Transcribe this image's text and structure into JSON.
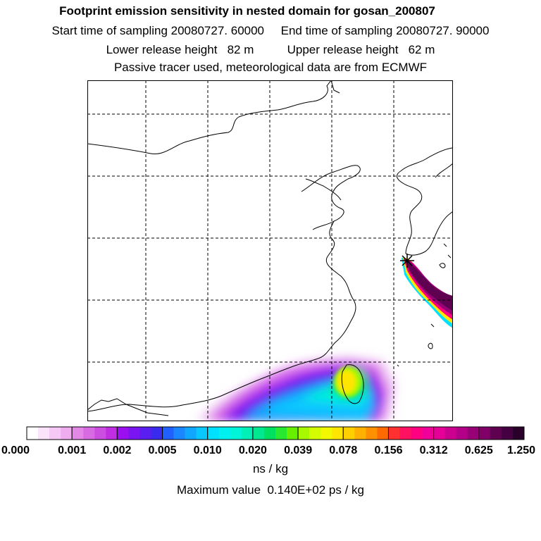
{
  "header": {
    "title": "Footprint emission sensitivity in nested domain for gosan_200807",
    "sampling": "Start time of sampling 20080727. 60000     End time of sampling 20080727. 90000",
    "release": "Lower release height   82 m          Upper release height   62 m",
    "tracer": "Passive tracer used, meteorological data are from ECMWF"
  },
  "colorbar": {
    "tick_labels": [
      "0.000",
      "0.001",
      "0.002",
      "0.005",
      "0.010",
      "0.020",
      "0.039",
      "0.078",
      "0.156",
      "0.312",
      "0.625",
      "1.250"
    ],
    "groups": [
      [
        "#ffffff",
        "#fbe3fb",
        "#f5c8f5",
        "#efadef"
      ],
      [
        "#e488e8",
        "#d96be2",
        "#cc4ee0",
        "#bf2ee0"
      ],
      [
        "#9a0ef0",
        "#7a14f0",
        "#5a1ef0",
        "#3a2af0"
      ],
      [
        "#2060ff",
        "#1a86ff",
        "#10a8ff",
        "#08c8ff"
      ],
      [
        "#00e0ff",
        "#00f0f0",
        "#00f5d8",
        "#00f0b8"
      ],
      [
        "#00e890",
        "#00e060",
        "#28e830",
        "#66f000"
      ],
      [
        "#a8f800",
        "#d4fc00",
        "#f2f800",
        "#ffe600"
      ],
      [
        "#ffd000",
        "#ffb000",
        "#ff9000",
        "#ff6a00"
      ],
      [
        "#ff3030",
        "#ff1060",
        "#ff0080",
        "#f00098"
      ],
      [
        "#e60098",
        "#cc0090",
        "#b40088",
        "#980078"
      ],
      [
        "#800068",
        "#600050",
        "#440040",
        "#28002a"
      ]
    ],
    "units": "ns / kg"
  },
  "footer": {
    "max_value": "Maximum value  0.140E+02 ps / kg"
  }
}
